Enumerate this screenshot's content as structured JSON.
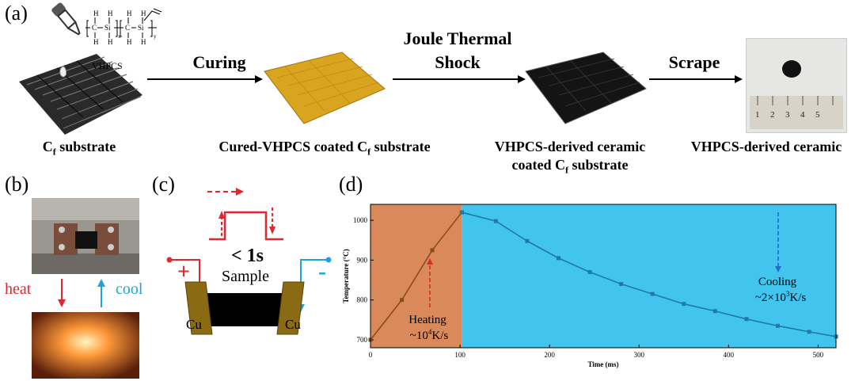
{
  "panels": {
    "a": "(a)",
    "b": "(b)",
    "c": "(c)",
    "d": "(d)"
  },
  "panel_a": {
    "vhpcs_label": "VHPCS",
    "chem_h": "H",
    "chem_c": "C",
    "chem_si": "Si",
    "chem_x": "x",
    "chem_y": "y",
    "steps": {
      "curing": "Curing",
      "joule_line1": "Joule Thermal",
      "joule_line2": "Shock",
      "scrape": "Scrape"
    },
    "captions": {
      "cf": "C",
      "cf_sub": "f",
      "cf_rest": " substrate",
      "cured": "Cured-VHPCS coated C",
      "cured_sub": "f",
      "cured_rest": " substrate",
      "derived_line1": "VHPCS-derived ceramic",
      "derived_line2": "coated C",
      "derived_sub": "f",
      "derived_rest": " substrate",
      "final": "VHPCS-derived ceramic"
    },
    "ruler_numbers": [
      "1",
      "2",
      "3",
      "4",
      "5"
    ]
  },
  "panel_b": {
    "heat": "heat",
    "cool": "cool"
  },
  "panel_c": {
    "time": "< 1s",
    "sample": "Sample",
    "plus": "+",
    "minus": "-",
    "cu_left": "Cu",
    "cu_right": "Cu"
  },
  "colors": {
    "heating_bg": "#d9895a",
    "cooling_bg": "#41c4ee",
    "curve": "#8b4a1a",
    "cool_curve": "#1f7aa8",
    "red": "#e0282e",
    "blue": "#1ea4dc",
    "cu": "#8a6a12"
  },
  "chart_data": {
    "type": "line",
    "title": "",
    "xlabel": "Time (ms)",
    "ylabel": "Temperature (°C)",
    "xlim": [
      0,
      520
    ],
    "ylim": [
      680,
      1040
    ],
    "xticks": [
      0,
      100,
      200,
      300,
      400,
      500
    ],
    "yticks": [
      700,
      800,
      900,
      1000
    ],
    "heating_region": [
      0,
      102
    ],
    "series": [
      {
        "name": "Heating",
        "x": [
          0,
          35,
          69,
          102
        ],
        "y": [
          700,
          800,
          925,
          1020
        ]
      },
      {
        "name": "Cooling",
        "x": [
          102,
          140,
          175,
          210,
          245,
          280,
          315,
          350,
          385,
          420,
          455,
          490,
          520
        ],
        "y": [
          1020,
          998,
          948,
          905,
          870,
          840,
          815,
          790,
          772,
          752,
          735,
          720,
          708
        ]
      }
    ],
    "annotations": {
      "heating_line1": "Heating",
      "heating_line2": "~10",
      "heating_exp": "4",
      "heating_unit": "K/s",
      "cooling_line1": "Cooling",
      "cooling_line2": "~2×10",
      "cooling_exp": "3",
      "cooling_unit": "K/s"
    }
  }
}
